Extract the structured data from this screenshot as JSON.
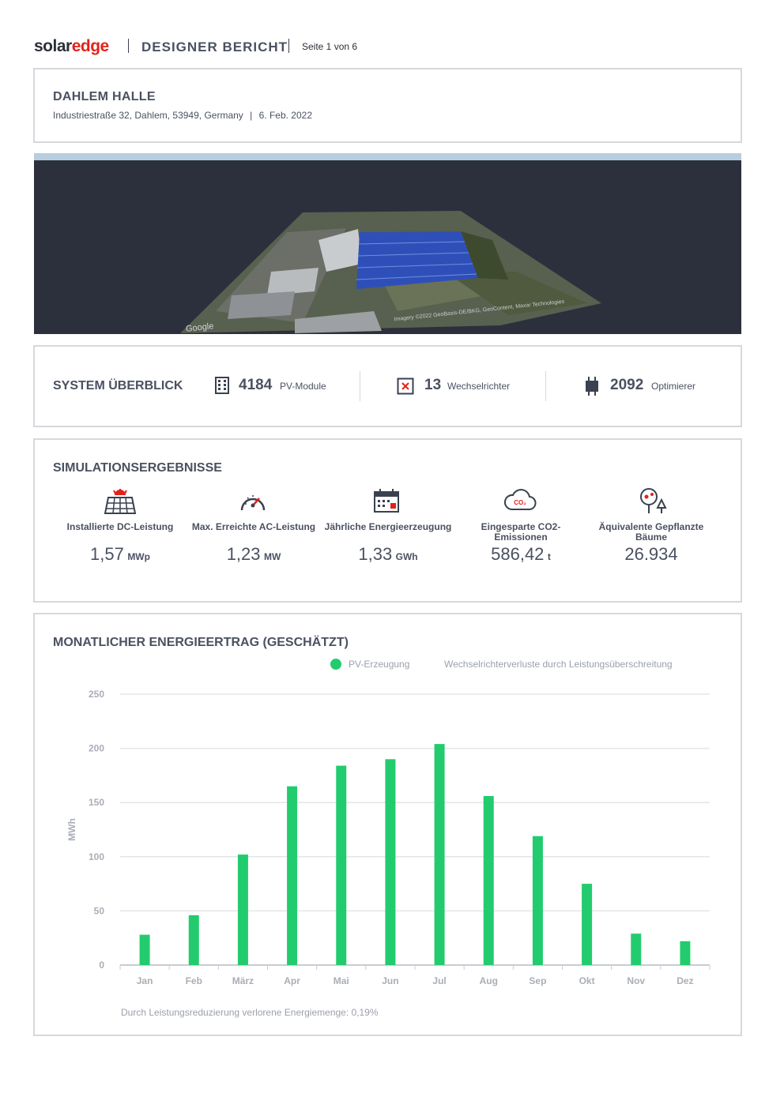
{
  "header": {
    "logo_solar": "solar",
    "logo_edge": "edge",
    "title": "DESIGNER BERICHT",
    "page": "Seite 1 von 6"
  },
  "project": {
    "name": "DAHLEM HALLE",
    "address": "Industriestraße 32, Dahlem, 53949, Germany",
    "date": "6. Feb. 2022"
  },
  "image": {
    "attribution": "Imagery ©2022 GeoBasis-DE/BKG, GeoContent, Maxar Technologies",
    "google": "Google"
  },
  "system": {
    "title": "SYSTEM ÜBERBLICK",
    "modules": {
      "count": "4184",
      "label": "PV-Module",
      "icon": "grid-building-icon"
    },
    "inverters": {
      "count": "13",
      "label": "Wechselrichter",
      "icon": "inverter-icon"
    },
    "optimizers": {
      "count": "2092",
      "label": "Optimierer",
      "icon": "optimizer-icon"
    }
  },
  "simulation": {
    "title": "SIMULATIONSERGEBNISSE",
    "items": [
      {
        "label": "Installierte DC-Leistung",
        "value": "1,57",
        "unit": "MWp",
        "icon": "solar-panel-icon"
      },
      {
        "label": "Max. Erreichte AC-Leistung",
        "value": "1,23",
        "unit": "MW",
        "icon": "speedometer-icon"
      },
      {
        "label": "Jährliche Energieerzeugung",
        "value": "1,33",
        "unit": "GWh",
        "icon": "calendar-icon"
      },
      {
        "label": "Eingesparte CO2-Emissionen",
        "value": "586,42",
        "unit": "t",
        "icon": "co2-cloud-icon"
      },
      {
        "label": "Äquivalente Gepflanzte Bäume",
        "value": "26.934",
        "unit": "",
        "icon": "tree-icon"
      }
    ]
  },
  "chart": {
    "title": "MONATLICHER ENERGIEERTRAG (GESCHÄTZT)",
    "legend_pv": "PV-Erzeugung",
    "legend_losses": "Wechselrichterverluste durch Leistungsüberschreitung",
    "footnote": "Durch Leistungsreduzierung verlorene Energiemenge: 0,19%",
    "bar_color": "#22cc6e"
  },
  "chart_data": {
    "type": "bar",
    "categories": [
      "Jan",
      "Feb",
      "März",
      "Apr",
      "Mai",
      "Jun",
      "Jul",
      "Aug",
      "Sep",
      "Okt",
      "Nov",
      "Dez"
    ],
    "series": [
      {
        "name": "PV-Erzeugung",
        "values": [
          28,
          46,
          102,
          165,
          184,
          190,
          204,
          156,
          119,
          75,
          29,
          22
        ]
      },
      {
        "name": "Wechselrichterverluste durch Leistungsüberschreitung",
        "values": [
          0,
          0,
          0,
          0,
          0,
          0,
          0,
          0,
          0,
          0,
          0,
          0
        ]
      }
    ],
    "ylabel": "MWh",
    "yticks": [
      0,
      50,
      100,
      150,
      200,
      250
    ],
    "ylim": [
      0,
      250
    ],
    "grid": true,
    "legend": "top-right"
  }
}
